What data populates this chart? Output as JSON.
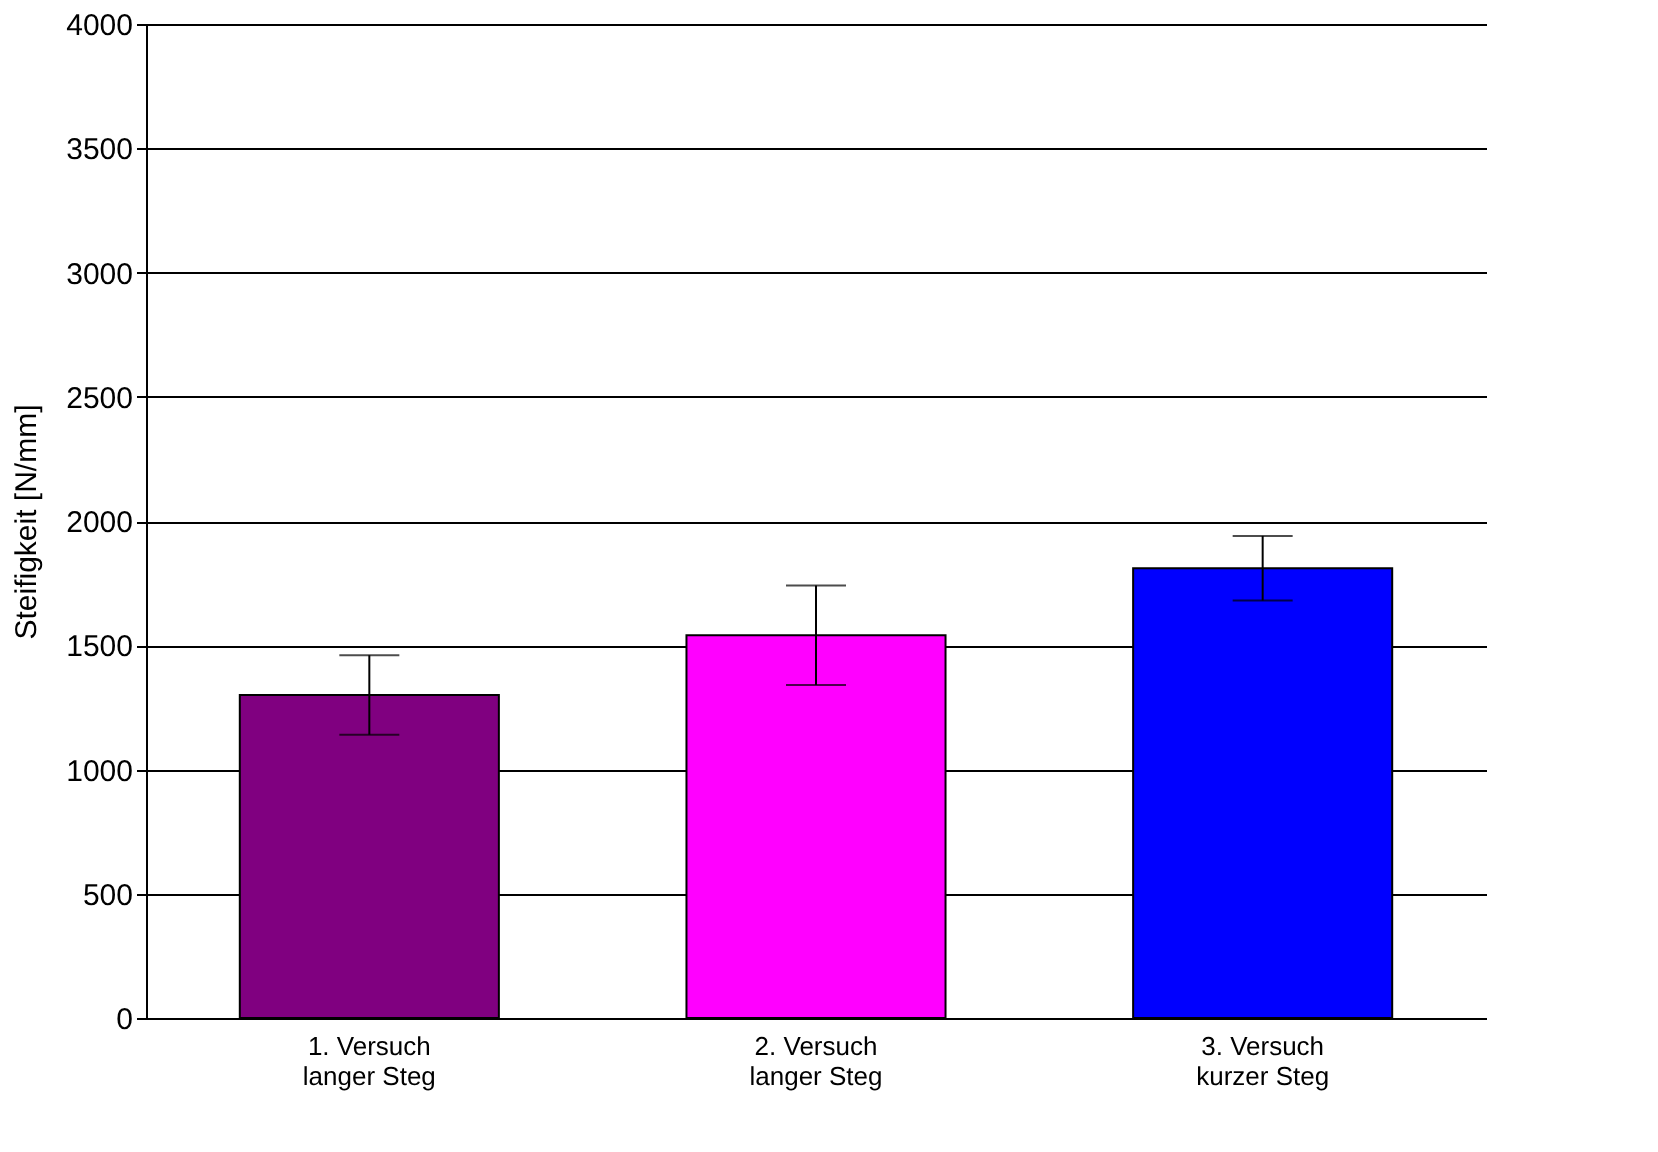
{
  "chart_data": {
    "type": "bar",
    "ylabel": "Steifigkeit [N/mm]",
    "categories": [
      "1. Versuch\nlanger Steg",
      "2. Versuch\nlanger Steg",
      "3. Versuch\nkurzer Steg"
    ],
    "values": [
      1300,
      1540,
      1810
    ],
    "colors": [
      "#800080",
      "#ff00ff",
      "#0000ff"
    ],
    "errors": [
      160,
      200,
      130
    ],
    "ylim": [
      0,
      4000
    ],
    "yticks": [
      0,
      500,
      1000,
      1500,
      2000,
      2500,
      3000,
      3500,
      4000
    ],
    "grid": "y"
  }
}
